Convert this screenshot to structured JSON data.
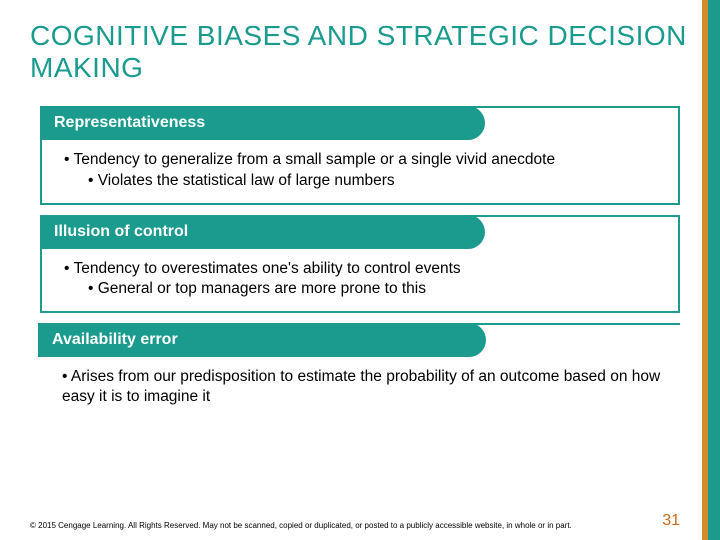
{
  "title": "COGNITIVE BIASES AND STRATEGIC DECISION MAKING",
  "colors": {
    "teal": "#1a9b8e",
    "orange": "#d48b2a",
    "page_num": "#c96a1e",
    "background": "#ffffff",
    "text": "#000000"
  },
  "blocks": [
    {
      "header": "Representativeness",
      "lines": [
        {
          "level": 1,
          "text": "Tendency to generalize from a small sample or a single vivid anecdote"
        },
        {
          "level": 2,
          "text": "Violates the statistical law of large numbers"
        }
      ]
    },
    {
      "header": "Illusion of control",
      "lines": [
        {
          "level": 1,
          "text": "Tendency to overestimates one's ability to control events"
        },
        {
          "level": 2,
          "text": "General or top managers are more prone to this"
        }
      ]
    },
    {
      "header": "Availability error",
      "lines": [
        {
          "level": 1,
          "text": "Arises from our predisposition to estimate the probability of an outcome based on how easy it is to imagine it"
        }
      ]
    }
  ],
  "copyright": "© 2015 Cengage Learning. All Rights Reserved. May not be scanned, copied or duplicated, or posted to a publicly accessible website, in whole or in part.",
  "page_number": "31"
}
